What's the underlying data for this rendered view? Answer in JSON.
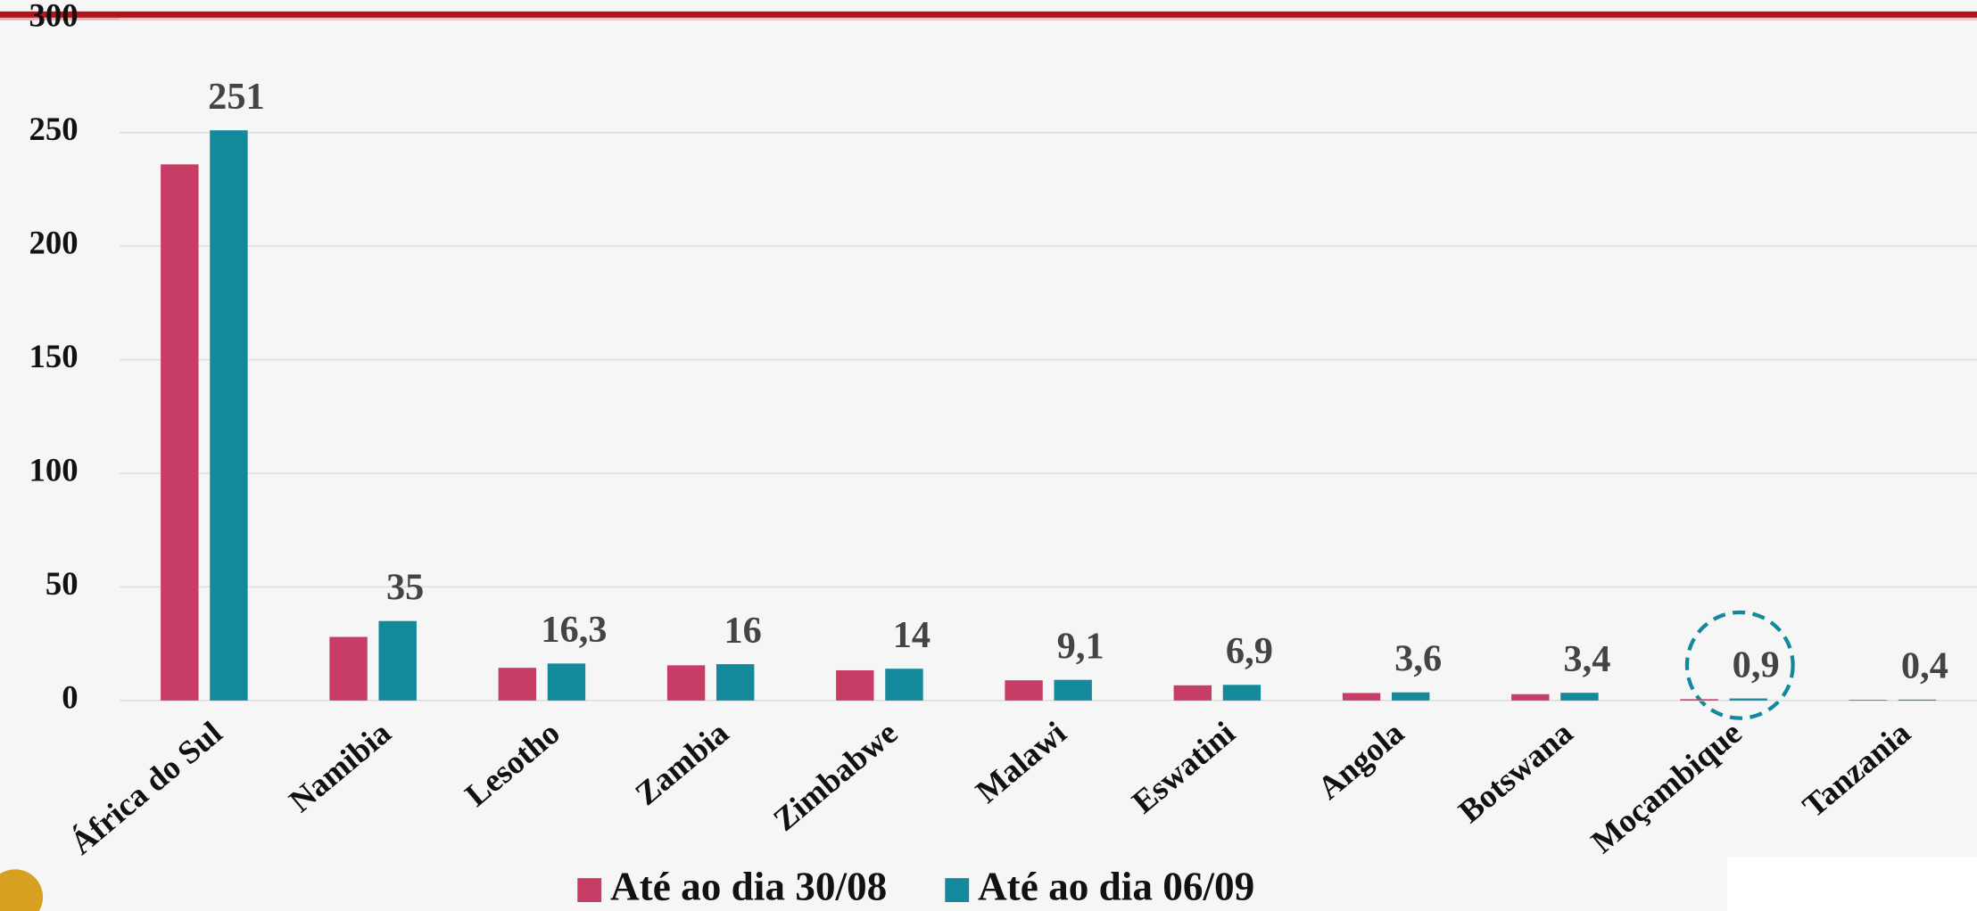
{
  "chart_data": {
    "type": "bar",
    "categories": [
      "África do Sul",
      "Namibia",
      "Lesotho",
      "Zambia",
      "Zimbabwe",
      "Malawi",
      "Eswatini",
      "Angola",
      "Botswana",
      "Moçambique",
      "Tanzania"
    ],
    "series": [
      {
        "name": "Até ao dia 30/08",
        "color": "#c73d66",
        "values": [
          236,
          28,
          14.4,
          15.5,
          13.3,
          8.9,
          6.7,
          3.3,
          2.8,
          0.6,
          0.3
        ]
      },
      {
        "name": "Até ao dia 06/09",
        "color": "#13899b",
        "values": [
          251,
          35,
          16.3,
          16,
          14,
          9.1,
          6.9,
          3.6,
          3.4,
          0.9,
          0.4
        ],
        "value_labels": [
          "251",
          "35",
          "16,3",
          "16",
          "14",
          "9,1",
          "6,9",
          "3,6",
          "3,4",
          "0,9",
          "0,4"
        ]
      }
    ],
    "ylim": [
      0,
      300
    ],
    "yticks": [
      0,
      50,
      100,
      150,
      200,
      250,
      300
    ],
    "grid": true,
    "legend": "bottom"
  }
}
